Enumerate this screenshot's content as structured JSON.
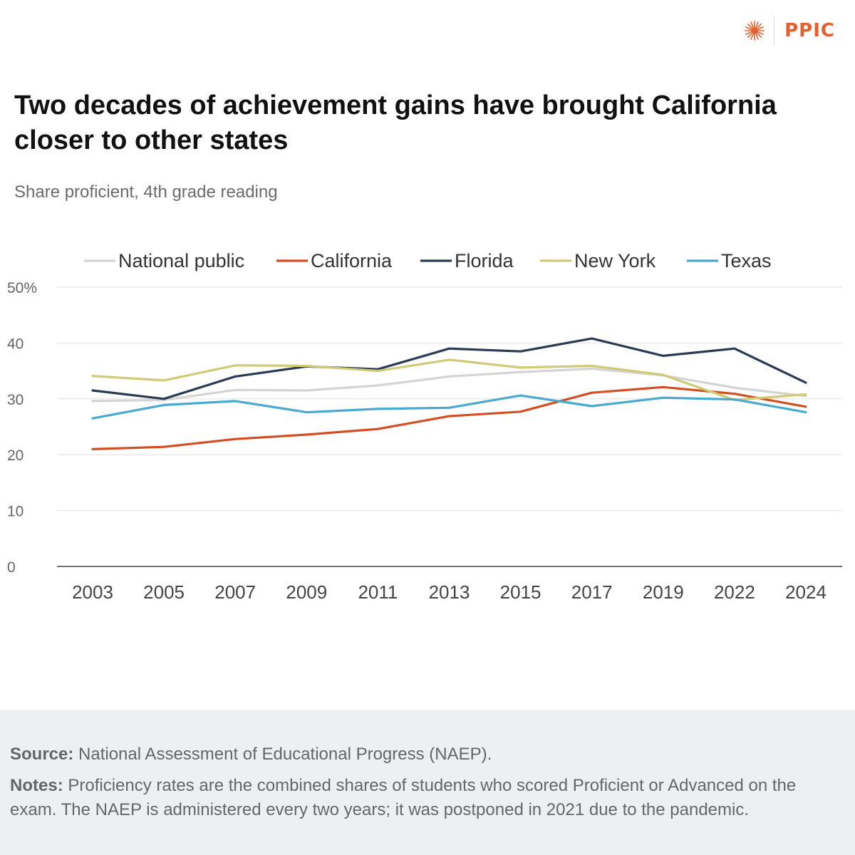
{
  "brand": {
    "name": "PPIC",
    "color": "#e2602d"
  },
  "header": {
    "title": "Two decades of achievement gains have brought California closer to other states",
    "subtitle": "Share proficient, 4th grade reading"
  },
  "chart_data": {
    "type": "line",
    "title": "Two decades of achievement gains have brought California closer to other states",
    "subtitle": "Share proficient, 4th grade reading",
    "x": [
      "2003",
      "2005",
      "2007",
      "2009",
      "2011",
      "2013",
      "2015",
      "2017",
      "2019",
      "2022",
      "2024"
    ],
    "ylim": [
      0,
      50
    ],
    "yticks": [
      0,
      10,
      20,
      30,
      40,
      50
    ],
    "ytick_labels": [
      "0",
      "10",
      "20",
      "30",
      "40",
      "50%"
    ],
    "grid": true,
    "legend_position": "top",
    "series": [
      {
        "name": "National public",
        "color": "#d4d4d4",
        "values": [
          29.6,
          29.8,
          31.6,
          31.5,
          32.4,
          34.0,
          34.8,
          35.4,
          34.2,
          32.0,
          30.5
        ]
      },
      {
        "name": "California",
        "color": "#d14f22",
        "values": [
          21.0,
          21.4,
          22.8,
          23.6,
          24.6,
          26.9,
          27.7,
          31.1,
          32.1,
          30.9,
          28.6
        ]
      },
      {
        "name": "Florida",
        "color": "#2b3a55",
        "values": [
          31.5,
          30.0,
          34.0,
          35.8,
          35.3,
          39.0,
          38.5,
          40.8,
          37.7,
          39.0,
          32.9
        ]
      },
      {
        "name": "New York",
        "color": "#cfcb77",
        "values": [
          34.1,
          33.3,
          36.0,
          35.9,
          35.0,
          37.0,
          35.6,
          35.9,
          34.3,
          29.8,
          30.8
        ]
      },
      {
        "name": "Texas",
        "color": "#4aa9cf",
        "values": [
          26.5,
          28.9,
          29.6,
          27.6,
          28.2,
          28.4,
          30.6,
          28.7,
          30.2,
          29.9,
          27.6
        ]
      }
    ]
  },
  "footer": {
    "source_label": "Source:",
    "source_text": "National Assessment of Educational Progress (NAEP).",
    "notes_label": "Notes:",
    "notes_text": "Proficiency rates are the combined shares of students who scored Proficient or Advanced on the exam. The NAEP is administered every two years; it was postponed in 2021 due to the pandemic."
  }
}
